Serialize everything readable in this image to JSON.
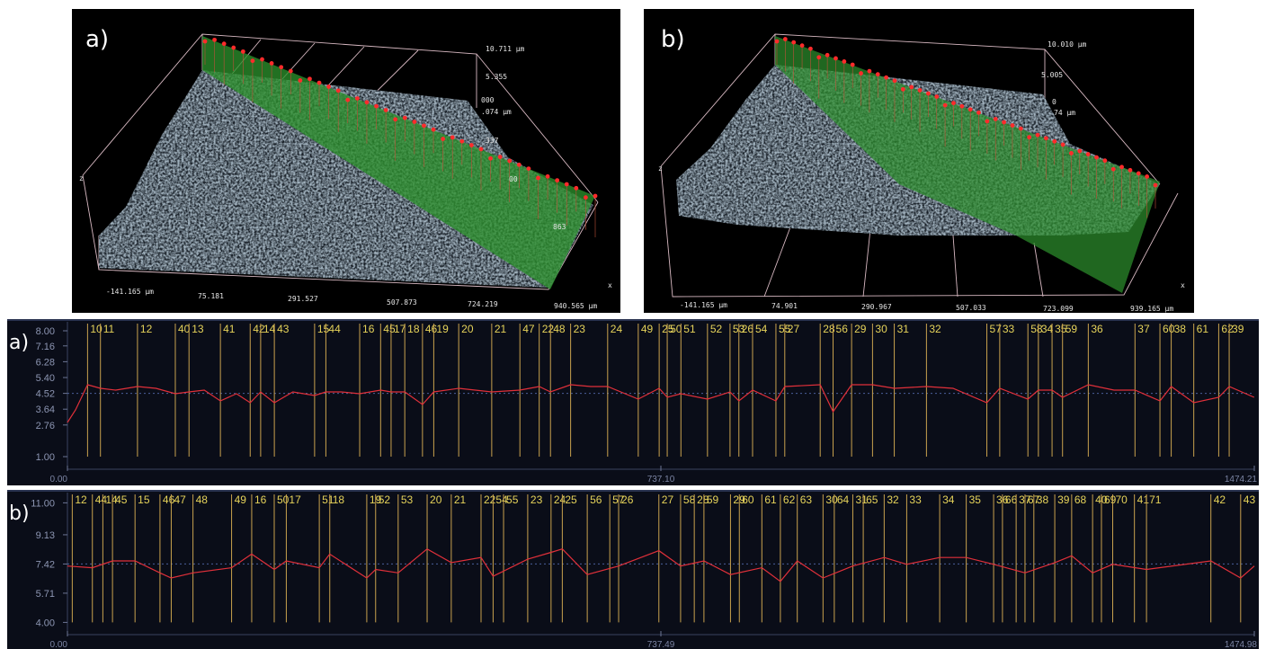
{
  "surfaces": [
    {
      "label": "a)",
      "z_labels": [
        "10.711 µm",
        "5.355",
        "000",
        ".074 µm",
        "337",
        "00",
        "863"
      ],
      "x_labels": [
        "-141.165 µm",
        "75.181",
        "291.527",
        "507.873",
        "724.219",
        "940.565 µm"
      ],
      "axis_z": "z",
      "axis_x": "x"
    },
    {
      "label": "b)",
      "z_labels": [
        "10.010 µm",
        "5.005",
        "0",
        "74 µm"
      ],
      "x_labels": [
        "-141.165 µm",
        "74.901",
        "290.967",
        "507.033",
        "723.099",
        "939.165 µm"
      ],
      "axis_z": "z",
      "axis_x": "x"
    }
  ],
  "profiles": [
    {
      "label": "a)",
      "color": "#e0303a",
      "marker_color": "#c9a24e",
      "marker_label_color": "#e6d35a",
      "xlim": [
        0,
        1474.21
      ],
      "xticks": [
        {
          "value": 0,
          "label": "0.00"
        },
        {
          "value": 737.1,
          "label": "737.10"
        },
        {
          "value": 1474.21,
          "label": "1474.21"
        }
      ],
      "ylim": [
        0.6,
        8.5
      ],
      "yticks": [
        {
          "value": 8,
          "label": "8.00"
        },
        7.16,
        6.28,
        {
          "value": 5.4,
          "label": "5.40"
        },
        4.52,
        3.64,
        2.76,
        {
          "value": 1,
          "label": "1.00"
        }
      ],
      "mean": 4.52,
      "x": [
        0,
        10,
        25,
        41,
        60,
        87,
        110,
        134,
        151,
        170,
        190,
        210,
        227,
        240,
        257,
        280,
        307,
        321,
        340,
        363,
        389,
        402,
        419,
        441,
        455,
        486,
        527,
        562,
        586,
        600,
        625,
        650,
        671,
        709,
        735,
        745,
        762,
        795,
        823,
        834,
        851,
        880,
        891,
        935,
        951,
        974,
        1000,
        1027,
        1067,
        1100,
        1142,
        1158,
        1193,
        1206,
        1223,
        1236,
        1268,
        1300,
        1326,
        1357,
        1371,
        1399,
        1430,
        1443,
        1474
      ],
      "values": [
        2.9,
        3.6,
        5.0,
        4.8,
        4.7,
        4.9,
        4.8,
        4.5,
        4.6,
        4.7,
        4.1,
        4.5,
        4.0,
        4.6,
        4.0,
        4.6,
        4.4,
        4.6,
        4.6,
        4.5,
        4.7,
        4.6,
        4.6,
        3.9,
        4.6,
        4.8,
        4.6,
        4.7,
        4.9,
        4.6,
        5.0,
        4.9,
        4.9,
        4.2,
        4.8,
        4.3,
        4.5,
        4.2,
        4.6,
        4.1,
        4.7,
        4.1,
        4.9,
        5.0,
        3.5,
        5.0,
        5.0,
        4.8,
        4.9,
        4.8,
        4.0,
        4.8,
        4.2,
        4.7,
        4.7,
        4.3,
        5.0,
        4.7,
        4.7,
        4.1,
        4.9,
        4.0,
        4.3,
        4.9,
        4.3
      ],
      "markers": [
        {
          "label": "10",
          "x": 25
        },
        {
          "label": "11",
          "x": 41
        },
        {
          "label": "12",
          "x": 87
        },
        {
          "label": "40",
          "x": 134
        },
        {
          "label": "13",
          "x": 151
        },
        {
          "label": "41",
          "x": 190
        },
        {
          "label": "42",
          "x": 227
        },
        {
          "label": "14",
          "x": 240
        },
        {
          "label": "43",
          "x": 257
        },
        {
          "label": "15",
          "x": 307
        },
        {
          "label": "44",
          "x": 321
        },
        {
          "label": "16",
          "x": 363
        },
        {
          "label": "45",
          "x": 389
        },
        {
          "label": "17",
          "x": 402
        },
        {
          "label": "18",
          "x": 419
        },
        {
          "label": "46",
          "x": 441
        },
        {
          "label": "19",
          "x": 455
        },
        {
          "label": "20",
          "x": 486
        },
        {
          "label": "21",
          "x": 527
        },
        {
          "label": "47",
          "x": 562
        },
        {
          "label": "22",
          "x": 586
        },
        {
          "label": "48",
          "x": 600
        },
        {
          "label": "23",
          "x": 625
        },
        {
          "label": "24",
          "x": 671
        },
        {
          "label": "49",
          "x": 709
        },
        {
          "label": "25",
          "x": 735
        },
        {
          "label": "50",
          "x": 745
        },
        {
          "label": "51",
          "x": 762
        },
        {
          "label": "52",
          "x": 795
        },
        {
          "label": "53",
          "x": 823
        },
        {
          "label": "26",
          "x": 834
        },
        {
          "label": "54",
          "x": 851
        },
        {
          "label": "55",
          "x": 880
        },
        {
          "label": "27",
          "x": 891
        },
        {
          "label": "28",
          "x": 935
        },
        {
          "label": "56",
          "x": 951
        },
        {
          "label": "29",
          "x": 974
        },
        {
          "label": "30",
          "x": 1000
        },
        {
          "label": "31",
          "x": 1027
        },
        {
          "label": "32",
          "x": 1067
        },
        {
          "label": "57",
          "x": 1142
        },
        {
          "label": "33",
          "x": 1158
        },
        {
          "label": "58",
          "x": 1193
        },
        {
          "label": "34",
          "x": 1206
        },
        {
          "label": "35",
          "x": 1223
        },
        {
          "label": "59",
          "x": 1236
        },
        {
          "label": "36",
          "x": 1268
        },
        {
          "label": "37",
          "x": 1326
        },
        {
          "label": "60",
          "x": 1357
        },
        {
          "label": "38",
          "x": 1371
        },
        {
          "label": "61",
          "x": 1399
        },
        {
          "label": "62",
          "x": 1430
        },
        {
          "label": "39",
          "x": 1443
        }
      ]
    },
    {
      "label": "b)",
      "color": "#e0303a",
      "marker_color": "#c9a24e",
      "marker_label_color": "#e6d35a",
      "xlim": [
        0,
        1474.98
      ],
      "xticks": [
        {
          "value": 0,
          "label": "0.00"
        },
        {
          "value": 737.49,
          "label": "737.49"
        },
        {
          "value": 1474.98,
          "label": "1474.98"
        }
      ],
      "ylim": [
        3.6,
        11.6
      ],
      "yticks": [
        {
          "value": 11,
          "label": "11.00"
        },
        9.13,
        7.42,
        5.71,
        {
          "value": 4,
          "label": "4.00"
        }
      ],
      "mean": 7.42,
      "x": [
        0,
        31,
        56,
        84,
        115,
        129,
        156,
        204,
        229,
        257,
        272,
        313,
        326,
        372,
        383,
        411,
        447,
        477,
        514,
        529,
        572,
        601,
        615,
        646,
        685,
        735,
        762,
        791,
        824,
        863,
        886,
        907,
        939,
        976,
        1015,
        1043,
        1084,
        1117,
        1151,
        1190,
        1227,
        1248,
        1274,
        1299,
        1341,
        1421,
        1458,
        1475
      ],
      "values": [
        7.3,
        7.2,
        7.6,
        7.6,
        6.9,
        6.6,
        6.9,
        7.2,
        8.0,
        7.1,
        7.6,
        7.2,
        8.0,
        6.6,
        7.1,
        6.9,
        8.3,
        7.5,
        7.8,
        6.7,
        7.7,
        8.1,
        8.3,
        6.8,
        7.3,
        8.2,
        7.3,
        7.6,
        6.8,
        7.2,
        6.4,
        7.6,
        6.6,
        7.3,
        7.8,
        7.4,
        7.8,
        7.8,
        7.4,
        6.9,
        7.5,
        7.9,
        6.9,
        7.4,
        7.1,
        7.6,
        6.6,
        7.3
      ],
      "markers": [
        {
          "label": "12",
          "x": 6
        },
        {
          "label": "44",
          "x": 31
        },
        {
          "label": "14",
          "x": 44
        },
        {
          "label": "45",
          "x": 56
        },
        {
          "label": "15",
          "x": 84
        },
        {
          "label": "46",
          "x": 115
        },
        {
          "label": "47",
          "x": 129
        },
        {
          "label": "48",
          "x": 156
        },
        {
          "label": "49",
          "x": 204
        },
        {
          "label": "16",
          "x": 229
        },
        {
          "label": "50",
          "x": 257
        },
        {
          "label": "17",
          "x": 272
        },
        {
          "label": "51",
          "x": 313
        },
        {
          "label": "18",
          "x": 326
        },
        {
          "label": "19",
          "x": 372
        },
        {
          "label": "52",
          "x": 383
        },
        {
          "label": "53",
          "x": 411
        },
        {
          "label": "20",
          "x": 447
        },
        {
          "label": "21",
          "x": 477
        },
        {
          "label": "22",
          "x": 514
        },
        {
          "label": "54",
          "x": 529
        },
        {
          "label": "55",
          "x": 542
        },
        {
          "label": "23",
          "x": 572
        },
        {
          "label": "24",
          "x": 601
        },
        {
          "label": "25",
          "x": 615
        },
        {
          "label": "56",
          "x": 646
        },
        {
          "label": "57",
          "x": 674
        },
        {
          "label": "26",
          "x": 685
        },
        {
          "label": "27",
          "x": 735
        },
        {
          "label": "58",
          "x": 762
        },
        {
          "label": "28",
          "x": 779
        },
        {
          "label": "59",
          "x": 791
        },
        {
          "label": "29",
          "x": 824
        },
        {
          "label": "60",
          "x": 835
        },
        {
          "label": "61",
          "x": 863
        },
        {
          "label": "62",
          "x": 886
        },
        {
          "label": "63",
          "x": 907
        },
        {
          "label": "30",
          "x": 939
        },
        {
          "label": "64",
          "x": 953
        },
        {
          "label": "31",
          "x": 976
        },
        {
          "label": "65",
          "x": 989
        },
        {
          "label": "32",
          "x": 1015
        },
        {
          "label": "33",
          "x": 1043
        },
        {
          "label": "34",
          "x": 1084
        },
        {
          "label": "35",
          "x": 1117
        },
        {
          "label": "36",
          "x": 1151
        },
        {
          "label": "66",
          "x": 1162
        },
        {
          "label": "37",
          "x": 1179
        },
        {
          "label": "67",
          "x": 1190
        },
        {
          "label": "38",
          "x": 1201
        },
        {
          "label": "39",
          "x": 1227
        },
        {
          "label": "68",
          "x": 1248
        },
        {
          "label": "40",
          "x": 1274
        },
        {
          "label": "69",
          "x": 1285
        },
        {
          "label": "70",
          "x": 1299
        },
        {
          "label": "41",
          "x": 1326
        },
        {
          "label": "71",
          "x": 1341
        },
        {
          "label": "42",
          "x": 1421
        },
        {
          "label": "43",
          "x": 1458
        }
      ]
    }
  ]
}
